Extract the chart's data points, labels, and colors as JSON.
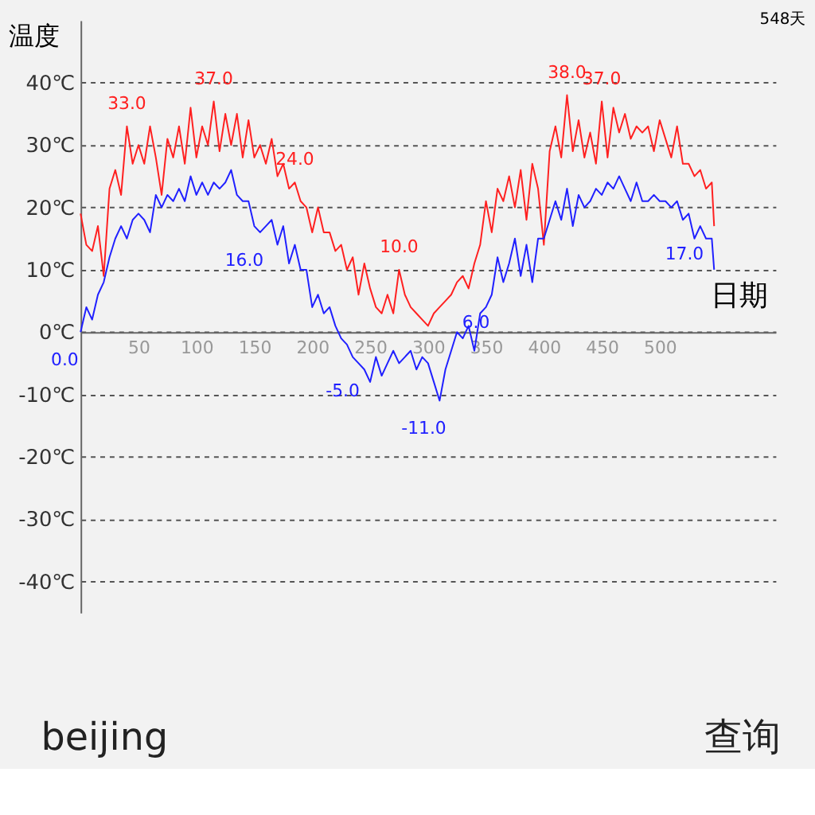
{
  "chart_data": {
    "type": "line",
    "ylabel": "温度",
    "xlabel": "日期",
    "xlim": [
      0,
      600
    ],
    "ylim": [
      -45,
      50
    ],
    "xticks": [
      50,
      100,
      150,
      200,
      250,
      300,
      350,
      400,
      450,
      500
    ],
    "yticks": [
      {
        "value": -40,
        "label": "-40℃"
      },
      {
        "value": -30,
        "label": "-30℃"
      },
      {
        "value": -20,
        "label": "-20℃"
      },
      {
        "value": -10,
        "label": "-10℃"
      },
      {
        "value": 0,
        "label": "0℃"
      },
      {
        "value": 10,
        "label": "10℃"
      },
      {
        "value": 20,
        "label": "20℃"
      },
      {
        "value": 30,
        "label": "30℃"
      },
      {
        "value": 40,
        "label": "40℃"
      }
    ],
    "grid": "y",
    "legend": false,
    "marker": "none",
    "line_style": "solid",
    "x": [
      0,
      5,
      10,
      15,
      20,
      25,
      30,
      35,
      40,
      45,
      50,
      55,
      60,
      65,
      70,
      75,
      80,
      85,
      90,
      95,
      100,
      105,
      110,
      115,
      120,
      125,
      130,
      135,
      140,
      145,
      150,
      155,
      160,
      165,
      170,
      175,
      180,
      185,
      190,
      195,
      200,
      205,
      210,
      215,
      220,
      225,
      230,
      235,
      240,
      245,
      250,
      255,
      260,
      265,
      270,
      275,
      280,
      285,
      290,
      295,
      300,
      305,
      310,
      315,
      320,
      325,
      330,
      335,
      340,
      345,
      350,
      355,
      360,
      365,
      370,
      375,
      380,
      385,
      390,
      395,
      400,
      405,
      410,
      415,
      420,
      425,
      430,
      435,
      440,
      445,
      450,
      455,
      460,
      465,
      470,
      475,
      480,
      485,
      490,
      495,
      500,
      505,
      510,
      515,
      520,
      525,
      530,
      535,
      540,
      545,
      547
    ],
    "series": [
      {
        "color": "#ff2020",
        "values": [
          19,
          14,
          13,
          17,
          9,
          23,
          26,
          22,
          33,
          27,
          30,
          27,
          33,
          28,
          22,
          31,
          28,
          33,
          27,
          36,
          28,
          33,
          30,
          37,
          29,
          35,
          30,
          35,
          28,
          34,
          28,
          30,
          27,
          31,
          25,
          27,
          23,
          24,
          21,
          20,
          16,
          20,
          16,
          16,
          13,
          14,
          10,
          12,
          6,
          11,
          7,
          4,
          3,
          6,
          3,
          10,
          6,
          4,
          3,
          2,
          1,
          3,
          4,
          5,
          6,
          8,
          9,
          7,
          11,
          14,
          21,
          16,
          23,
          21,
          25,
          20,
          26,
          18,
          27,
          23,
          14,
          29,
          33,
          28,
          38,
          29,
          34,
          28,
          32,
          27,
          37,
          28,
          36,
          32,
          35,
          31,
          33,
          32,
          33,
          29,
          34,
          31,
          28,
          33,
          27,
          27,
          25,
          26,
          23,
          24,
          17
        ]
      },
      {
        "color": "#2020ff",
        "values": [
          0,
          4,
          2,
          6,
          8,
          12,
          15,
          17,
          15,
          18,
          19,
          18,
          16,
          22,
          20,
          22,
          21,
          23,
          21,
          25,
          22,
          24,
          22,
          24,
          23,
          24,
          26,
          22,
          21,
          21,
          17,
          16,
          17,
          18,
          14,
          17,
          11,
          14,
          10,
          10,
          4,
          6,
          3,
          4,
          1,
          -1,
          -2,
          -4,
          -5,
          -6,
          -8,
          -4,
          -7,
          -5,
          -3,
          -5,
          -4,
          -3,
          -6,
          -4,
          -5,
          -8,
          -11,
          -6,
          -3,
          0,
          -1,
          1,
          -3,
          3,
          4,
          6,
          12,
          8,
          11,
          15,
          9,
          14,
          8,
          15,
          15,
          18,
          21,
          18,
          23,
          17,
          22,
          20,
          21,
          23,
          22,
          24,
          23,
          25,
          23,
          21,
          24,
          21,
          21,
          22,
          21,
          21,
          20,
          21,
          18,
          19,
          15,
          17,
          15,
          15,
          10
        ]
      }
    ],
    "annotations": [
      {
        "text": "33.0",
        "x": 40,
        "y": 33
      },
      {
        "text": "37.0",
        "x": 115,
        "y": 37
      },
      {
        "text": "24.0",
        "x": 185,
        "y": 24
      },
      {
        "text": "10.0",
        "x": 275,
        "y": 10
      },
      {
        "text": "38.0",
        "x": 420,
        "y": 38
      },
      {
        "text": "37.0",
        "x": 450,
        "y": 37
      },
      {
        "text": "0.0",
        "x": 0,
        "y": 0
      },
      {
        "text": "16.0",
        "x": 155,
        "y": 16
      },
      {
        "text": "-5.0",
        "x": 240,
        "y": -5
      },
      {
        "text": "-11.0",
        "x": 310,
        "y": -11
      },
      {
        "text": "6.0",
        "x": 355,
        "y": 6
      },
      {
        "text": "17.0",
        "x": 535,
        "y": 17
      },
      "548天",
      "beijing",
      "查询"
    ]
  }
}
